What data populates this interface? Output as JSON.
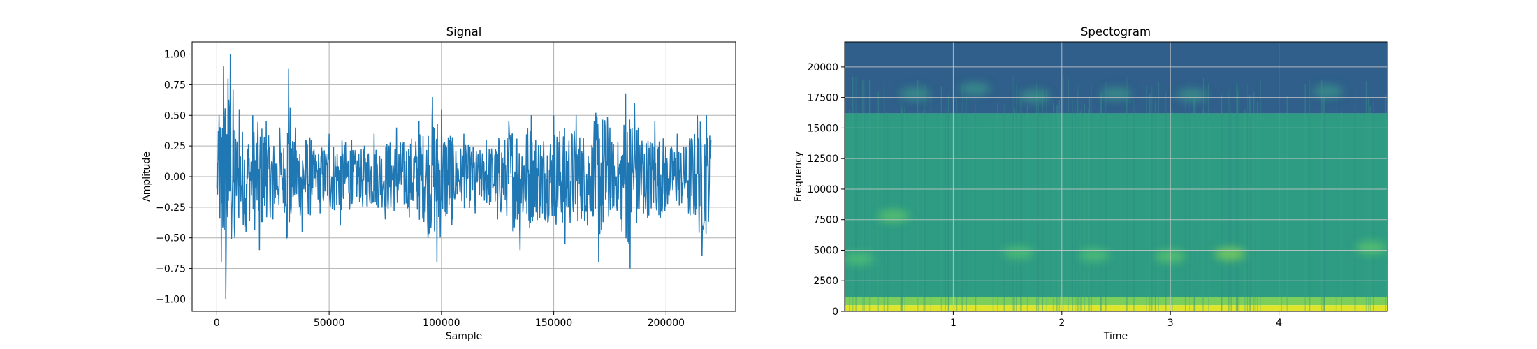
{
  "figure": {
    "background": "#ffffff"
  },
  "chart_data": [
    {
      "type": "line",
      "title": "Signal",
      "xlabel": "Sample",
      "ylabel": "Amplitude",
      "xlim": [
        -11000,
        231000
      ],
      "ylim": [
        -1.1,
        1.1
      ],
      "xticks": [
        0,
        50000,
        100000,
        150000,
        200000
      ],
      "xtick_labels": [
        "0",
        "50000",
        "100000",
        "150000",
        "200000"
      ],
      "yticks": [
        -1.0,
        -0.75,
        -0.5,
        -0.25,
        0.0,
        0.25,
        0.5,
        0.75,
        1.0
      ],
      "ytick_labels": [
        "−1.00",
        "−0.75",
        "−0.50",
        "−0.25",
        "0.00",
        "0.25",
        "0.50",
        "0.75",
        "1.00"
      ],
      "grid": true,
      "line_color": "#1f77b4",
      "series": [
        {
          "x": [
            0,
            1000,
            2000,
            3000,
            4000,
            5000,
            6000,
            8000,
            10000,
            13000,
            16000,
            19000,
            22000,
            25000,
            28000,
            31000,
            32000,
            33000,
            35000,
            38000,
            42000,
            46000,
            50000,
            55000,
            60000,
            65000,
            70000,
            75000,
            80000,
            85000,
            90000,
            94000,
            96000,
            98000,
            100000,
            105000,
            110000,
            115000,
            120000,
            125000,
            130000,
            135000,
            140000,
            145000,
            150000,
            155000,
            160000,
            165000,
            168000,
            170000,
            175000,
            180000,
            182000,
            184000,
            186000,
            190000,
            195000,
            200000,
            205000,
            210000,
            214000,
            216000,
            218000,
            220000
          ],
          "y": [
            -0.1,
            0.5,
            -0.7,
            0.9,
            -1.0,
            0.8,
            1.0,
            -0.5,
            0.55,
            -0.45,
            0.5,
            -0.6,
            0.45,
            -0.35,
            0.4,
            -0.4,
            0.88,
            -0.3,
            0.4,
            -0.45,
            0.3,
            -0.3,
            0.35,
            -0.4,
            0.3,
            -0.25,
            0.35,
            -0.35,
            0.4,
            -0.25,
            0.45,
            -0.5,
            0.65,
            -0.7,
            0.55,
            -0.35,
            0.35,
            -0.3,
            0.3,
            -0.35,
            0.45,
            -0.6,
            0.5,
            -0.3,
            0.5,
            -0.55,
            0.5,
            -0.4,
            0.45,
            -0.7,
            0.4,
            -0.35,
            0.68,
            -0.75,
            0.6,
            -0.3,
            0.45,
            -0.25,
            0.35,
            -0.3,
            0.5,
            -0.65,
            0.5,
            0.3
          ]
        }
      ]
    },
    {
      "type": "heatmap",
      "title": "Spectogram",
      "xlabel": "Time",
      "ylabel": "Frequency",
      "xlim": [
        0,
        5.0
      ],
      "ylim": [
        0,
        22050
      ],
      "xticks": [
        1,
        2,
        3,
        4
      ],
      "xtick_labels": [
        "1",
        "2",
        "3",
        "4"
      ],
      "yticks": [
        0,
        2500,
        5000,
        7500,
        10000,
        12500,
        15000,
        17500,
        20000
      ],
      "ytick_labels": [
        "0",
        "2500",
        "5000",
        "7500",
        "10000",
        "12500",
        "15000",
        "17500",
        "20000"
      ],
      "grid": true,
      "colormap": "viridis",
      "bands": [
        {
          "freq_low": 16200,
          "freq_high": 22050,
          "color": "#2f5f8a"
        },
        {
          "freq_low": 1200,
          "freq_high": 16200,
          "color": "#2e9c83"
        },
        {
          "freq_low": 500,
          "freq_high": 1200,
          "color": "#7ccf5b"
        },
        {
          "freq_low": 0,
          "freq_high": 500,
          "color": "#dfe62a"
        }
      ],
      "blobs": [
        {
          "t": 0.45,
          "f": 7800,
          "color": "#5bc26d"
        },
        {
          "t": 0.13,
          "f": 4300,
          "color": "#4fbd75"
        },
        {
          "t": 1.6,
          "f": 4800,
          "color": "#4fbd75"
        },
        {
          "t": 2.3,
          "f": 4600,
          "color": "#4fbd75"
        },
        {
          "t": 3.0,
          "f": 4500,
          "color": "#5bc26d"
        },
        {
          "t": 3.55,
          "f": 4700,
          "color": "#7ccf5b"
        },
        {
          "t": 4.85,
          "f": 5200,
          "color": "#5bc26d"
        },
        {
          "t": 0.65,
          "f": 17800,
          "color": "#3b8f8a"
        },
        {
          "t": 1.2,
          "f": 18200,
          "color": "#3b8f8a"
        },
        {
          "t": 1.75,
          "f": 17600,
          "color": "#3b8f8a"
        },
        {
          "t": 2.5,
          "f": 17800,
          "color": "#3b8f8a"
        },
        {
          "t": 3.2,
          "f": 17700,
          "color": "#3b8f8a"
        },
        {
          "t": 4.45,
          "f": 18000,
          "color": "#3b8f8a"
        }
      ]
    }
  ]
}
